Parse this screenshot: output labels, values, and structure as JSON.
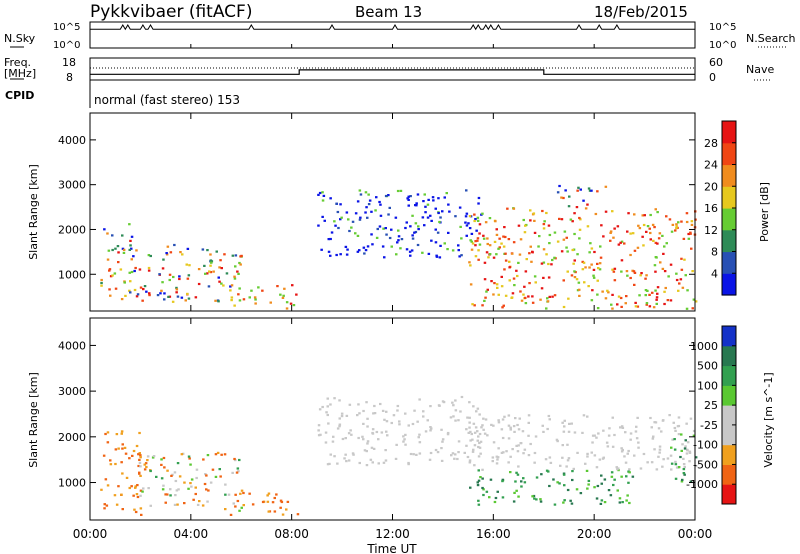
{
  "header": {
    "title": "Pykkvibaer (fitACF)",
    "beam": "Beam 13",
    "date": "18/Feb/2015"
  },
  "sky_panel": {
    "left_label": "N.Sky",
    "left_ticks": [
      "10^5",
      "10^0"
    ],
    "right_ticks": [
      "10^5",
      "10^0"
    ],
    "right_label": "N.Search"
  },
  "freq_panel": {
    "left_label_1": "Freq.",
    "left_label_2": "[MHz]",
    "left_ticks": [
      "18",
      "8"
    ],
    "right_ticks": [
      "60",
      "0"
    ],
    "right_label": "Nave",
    "cpid_label": "CPID",
    "mode_text": "normal (fast stereo) 153"
  },
  "chart_data": [
    {
      "type": "heatmap",
      "title": "",
      "xlabel": "Time UT",
      "ylabel": "Slant Range [km]",
      "xlim": [
        0,
        24
      ],
      "ylim": [
        180,
        4600
      ],
      "x_tick_labels": [
        "00:00",
        "04:00",
        "08:00",
        "12:00",
        "16:00",
        "20:00",
        "00:00"
      ],
      "y_tick_labels": [
        "1000",
        "2000",
        "3000",
        "4000"
      ],
      "y_ticks": [
        1000,
        2000,
        3000,
        4000
      ],
      "colorbar": {
        "label": "Power [dB]",
        "tick_labels": [
          "4",
          "8",
          "12",
          "16",
          "20",
          "24",
          "28"
        ],
        "colors": [
          "#0a14e6",
          "#2850b4",
          "#2e8b57",
          "#66cc33",
          "#e6c81e",
          "#f08c1e",
          "#f04614",
          "#e61414"
        ]
      },
      "regions": [
        {
          "t0": 0.4,
          "t1": 1.8,
          "r0": 300,
          "r1": 2150,
          "level": "mixed"
        },
        {
          "t0": 1.8,
          "t1": 6.0,
          "r0": 400,
          "r1": 1700,
          "level": "mixed"
        },
        {
          "t0": 5.5,
          "t1": 8.2,
          "r0": 250,
          "r1": 800,
          "level": "high"
        },
        {
          "t0": 9.0,
          "t1": 15.6,
          "r0": 1400,
          "r1": 2900,
          "level": "low"
        },
        {
          "t0": 15.0,
          "t1": 24.0,
          "r0": 250,
          "r1": 2500,
          "level": "high"
        },
        {
          "t0": 18.5,
          "t1": 20.5,
          "r0": 2500,
          "r1": 3000,
          "level": "mixed"
        }
      ]
    },
    {
      "type": "heatmap",
      "title": "",
      "xlabel": "Time UT",
      "ylabel": "Slant Range [km]",
      "xlim": [
        0,
        24
      ],
      "ylim": [
        180,
        4600
      ],
      "x_tick_labels": [
        "00:00",
        "04:00",
        "08:00",
        "12:00",
        "16:00",
        "20:00",
        "00:00"
      ],
      "y_tick_labels": [
        "1000",
        "2000",
        "3000",
        "4000"
      ],
      "y_ticks": [
        1000,
        2000,
        3000,
        4000
      ],
      "colorbar": {
        "label": "Velocity [m s^-1]",
        "tick_labels": [
          "1000",
          "500",
          "100",
          "25",
          "-25",
          "-100",
          "-500",
          "-1000"
        ],
        "colors": [
          "#1432c8",
          "#287850",
          "#32a050",
          "#5ac832",
          "#c8c8c8",
          "#c8c8c8",
          "#f0a01e",
          "#f06414",
          "#e61414"
        ]
      },
      "regions": [
        {
          "t0": 0.4,
          "t1": 2.0,
          "r0": 300,
          "r1": 2150,
          "level": "negative"
        },
        {
          "t0": 1.8,
          "t1": 6.0,
          "r0": 400,
          "r1": 1700,
          "level": "mixed"
        },
        {
          "t0": 5.5,
          "t1": 8.2,
          "r0": 250,
          "r1": 800,
          "level": "negative"
        },
        {
          "t0": 9.0,
          "t1": 15.6,
          "r0": 1400,
          "r1": 2900,
          "level": "near-zero"
        },
        {
          "t0": 15.0,
          "t1": 21.5,
          "r0": 500,
          "r1": 1300,
          "level": "positive"
        },
        {
          "t0": 15.0,
          "t1": 24.0,
          "r0": 1300,
          "r1": 2500,
          "level": "near-zero"
        },
        {
          "t0": 23.0,
          "t1": 24.0,
          "r0": 1000,
          "r1": 2100,
          "level": "positive"
        }
      ]
    }
  ],
  "sky_trace": {
    "baseline_fraction": 0.75,
    "spike_hours": [
      1.3,
      1.5,
      2.1,
      2.4,
      6.4,
      9.6,
      12.1,
      15.2,
      15.4,
      15.7,
      15.9,
      16.2,
      19.4,
      20.2,
      20.9
    ]
  },
  "freq_trace": {
    "steps": [
      {
        "t0": 0.0,
        "t1": 8.3,
        "value": 10.6
      },
      {
        "t0": 8.3,
        "t1": 18.0,
        "value": 12.6
      },
      {
        "t0": 18.0,
        "t1": 24.0,
        "value": 10.6
      }
    ]
  }
}
